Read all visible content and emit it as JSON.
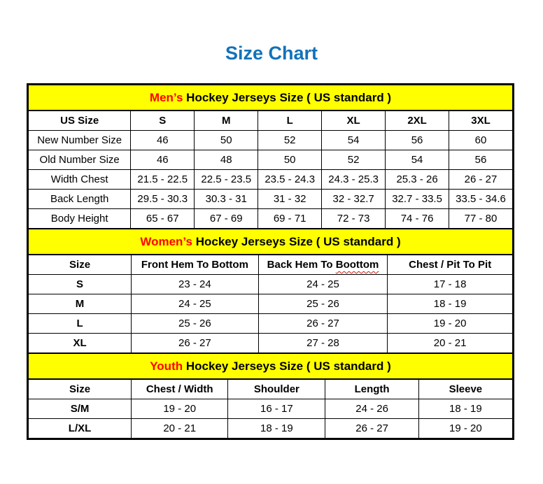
{
  "title": "Size Chart",
  "colors": {
    "title_blue": "#1272ba",
    "section_highlight_red": "#ff0000",
    "section_header_yellow": "#ffff00",
    "border_black": "#000000"
  },
  "men": {
    "header_highlight": "Men’s",
    "header_rest": " Hockey Jerseys Size ( US standard )",
    "columns": [
      "US Size",
      "S",
      "M",
      "L",
      "XL",
      "2XL",
      "3XL"
    ],
    "rows": [
      {
        "label": "New Number Size",
        "values": [
          "46",
          "50",
          "52",
          "54",
          "56",
          "60"
        ]
      },
      {
        "label": "Old Number Size",
        "values": [
          "46",
          "48",
          "50",
          "52",
          "54",
          "56"
        ]
      },
      {
        "label": "Width Chest",
        "values": [
          "21.5 - 22.5",
          "22.5 - 23.5",
          "23.5 - 24.3",
          "24.3 - 25.3",
          "25.3 - 26",
          "26 - 27"
        ]
      },
      {
        "label": "Back Length",
        "values": [
          "29.5 - 30.3",
          "30.3 - 31",
          "31 - 32",
          "32 - 32.7",
          "32.7 - 33.5",
          "33.5 - 34.6"
        ]
      },
      {
        "label": "Body Height",
        "values": [
          "65 - 67",
          "67 - 69",
          "69 - 71",
          "72 - 73",
          "74 - 76",
          "77 - 80"
        ]
      }
    ]
  },
  "women": {
    "header_highlight": "Women’s",
    "header_rest": " Hockey Jerseys Size ( US standard )",
    "columns": [
      "Size",
      "Front Hem To Bottom",
      "Back Hem To Boottom",
      "Chest / Pit To Pit"
    ],
    "spellcheck": {
      "prefix": "Back Hem To ",
      "word": "Boottom"
    },
    "rows": [
      {
        "label": "S",
        "values": [
          "23 - 24",
          "24 - 25",
          "17 - 18"
        ]
      },
      {
        "label": "M",
        "values": [
          "24 - 25",
          "25 - 26",
          "18 - 19"
        ]
      },
      {
        "label": "L",
        "values": [
          "25 - 26",
          "26 - 27",
          "19 - 20"
        ]
      },
      {
        "label": "XL",
        "values": [
          "26 - 27",
          "27 - 28",
          "20 - 21"
        ]
      }
    ]
  },
  "youth": {
    "header_highlight": "Youth",
    "header_rest": " Hockey Jerseys Size ( US standard )",
    "columns": [
      "Size",
      "Chest / Width",
      "Shoulder",
      "Length",
      "Sleeve"
    ],
    "rows": [
      {
        "label": "S/M",
        "values": [
          "19 - 20",
          "16 - 17",
          "24 - 26",
          "18 - 19"
        ]
      },
      {
        "label": "L/XL",
        "values": [
          "20 - 21",
          "18 - 19",
          "26 - 27",
          "19 - 20"
        ]
      }
    ]
  }
}
